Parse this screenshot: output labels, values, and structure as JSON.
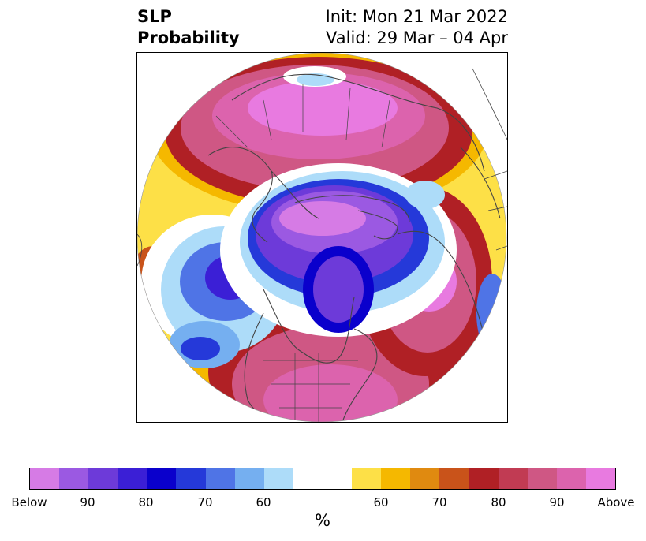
{
  "header": {
    "title_line1": "SLP",
    "title_line2": "Probability",
    "init_label": "Init: Mon 21 Mar 2022",
    "valid_label": "Valid: 29 Mar – 04 Apr"
  },
  "colorbar": {
    "unit": "%",
    "colors": [
      "#d67be5",
      "#9b59e2",
      "#6d3ad9",
      "#3b1fd6",
      "#0a00cc",
      "#2539d9",
      "#4f74e6",
      "#75aff0",
      "#addcf9",
      "#ffffff",
      "#ffffff",
      "#fde047",
      "#f5b800",
      "#e08a10",
      "#c9531a",
      "#b02025",
      "#c13b53",
      "#cf5784",
      "#dc63ad",
      "#e87ae0"
    ],
    "labels": [
      "Below",
      "90",
      "80",
      "70",
      "60",
      "60",
      "70",
      "80",
      "90",
      "Above"
    ]
  },
  "palette": {
    "below_strong": "#9b59e2",
    "below_mid": "#0a00cc",
    "below_weak": "#75aff0",
    "above_weak": "#f5b800",
    "above_mid": "#b02025",
    "above_strong": "#dc63ad",
    "coast": "#444444"
  }
}
